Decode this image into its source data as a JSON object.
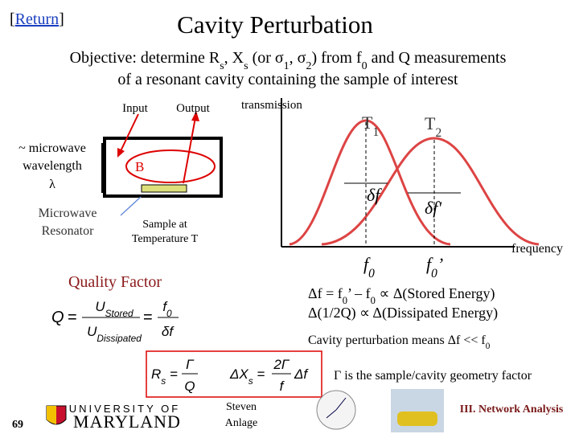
{
  "header": {
    "return": [
      "[",
      {
        "link": "Return"
      },
      "]"
    ],
    "title": "Cavity Perturbation"
  },
  "objective": {
    "line1": [
      "Objective: determine R",
      {
        "sub": "s"
      },
      ", X",
      {
        "sub": "s"
      },
      " (or σ",
      {
        "sub": "1"
      },
      ", σ",
      {
        "sub": "2"
      },
      ") from f",
      {
        "sub": "0"
      },
      " and Q measurements"
    ],
    "line2": "of a resonant cavity containing the sample of interest"
  },
  "diagram": {
    "input": "Input",
    "output": "Output",
    "wavelength": [
      "~ microwave",
      "wavelength",
      "λ"
    ],
    "resonator": [
      "Microwave",
      "Resonator"
    ],
    "field": "B",
    "sample": [
      "Sample at",
      "Temperature T"
    ]
  },
  "plot": {
    "y_label": "transmission",
    "x_label": "frequency",
    "t1": [
      "T",
      {
        "sub": "1"
      }
    ],
    "t2": [
      "T",
      {
        "sub": "2"
      }
    ],
    "width1": "δf",
    "width2": "δf'",
    "f0": [
      "f",
      {
        "sub": "0"
      }
    ],
    "f0_prime": [
      "f",
      {
        "sub": "0"
      },
      "’"
    ]
  },
  "quality": {
    "heading": "Quality Factor",
    "q": "Q",
    "eq": "=",
    "u_stored": [
      "U",
      {
        "sub": "Stored"
      }
    ],
    "u_dissipated": [
      "U",
      {
        "sub": "Dissipated"
      }
    ],
    "eq2": "=",
    "f0": [
      "f",
      {
        "sub": "0"
      }
    ],
    "df": "δf"
  },
  "relations": {
    "line1": [
      "Δf = f",
      {
        "sub": "0"
      },
      "’ – f",
      {
        "sub": "0"
      },
      " ∝ Δ(Stored Energy)"
    ],
    "line2": "Δ(1/2Q) ∝ Δ(Dissipated Energy)",
    "line3": [
      "Cavity perturbation means Δf << f",
      {
        "sub": "0"
      }
    ]
  },
  "formulas": {
    "rs": [
      "R",
      {
        "sub": "s"
      },
      " ="
    ],
    "gamma": "Γ",
    "q": "Q",
    "dxs": [
      "ΔX",
      {
        "sub": "s"
      },
      " ="
    ],
    "two_gamma": "2Γ",
    "f": "f",
    "df": "Δf"
  },
  "geometry": "Γ is the sample/cavity geometry factor",
  "footer": {
    "page": "69",
    "university": "UNIVERSITY OF",
    "maryland": "MARYLAND",
    "author": [
      "Steven",
      "Anlage"
    ],
    "section": "III. Network Analysis"
  }
}
